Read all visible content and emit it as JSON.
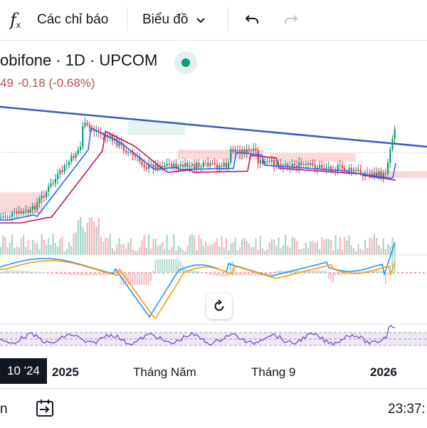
{
  "toolbar": {
    "fx_label": "fx",
    "indicators_label": "Các chỉ báo",
    "chart_type_label": "Biểu đồ"
  },
  "symbol": {
    "title": "obifone · 1D · UPCOM",
    "price_fragment": "49",
    "change": "-0.18 (-0.68%)"
  },
  "time_axis": {
    "highlight": "10 '24",
    "ticks": [
      "2025",
      "Tháng Năm",
      "Tháng 9",
      "2026"
    ]
  },
  "bottom": {
    "left_fragment": "n",
    "time": "23:37:"
  },
  "colors": {
    "trendline": "#3a58c4",
    "up": "#089981",
    "down": "#f23645",
    "ma_fast": "#2962ff",
    "ma_slow": "#c2185b",
    "rsi": "#7e57c2",
    "macd": "#2196f3",
    "signal": "#ff9800"
  }
}
